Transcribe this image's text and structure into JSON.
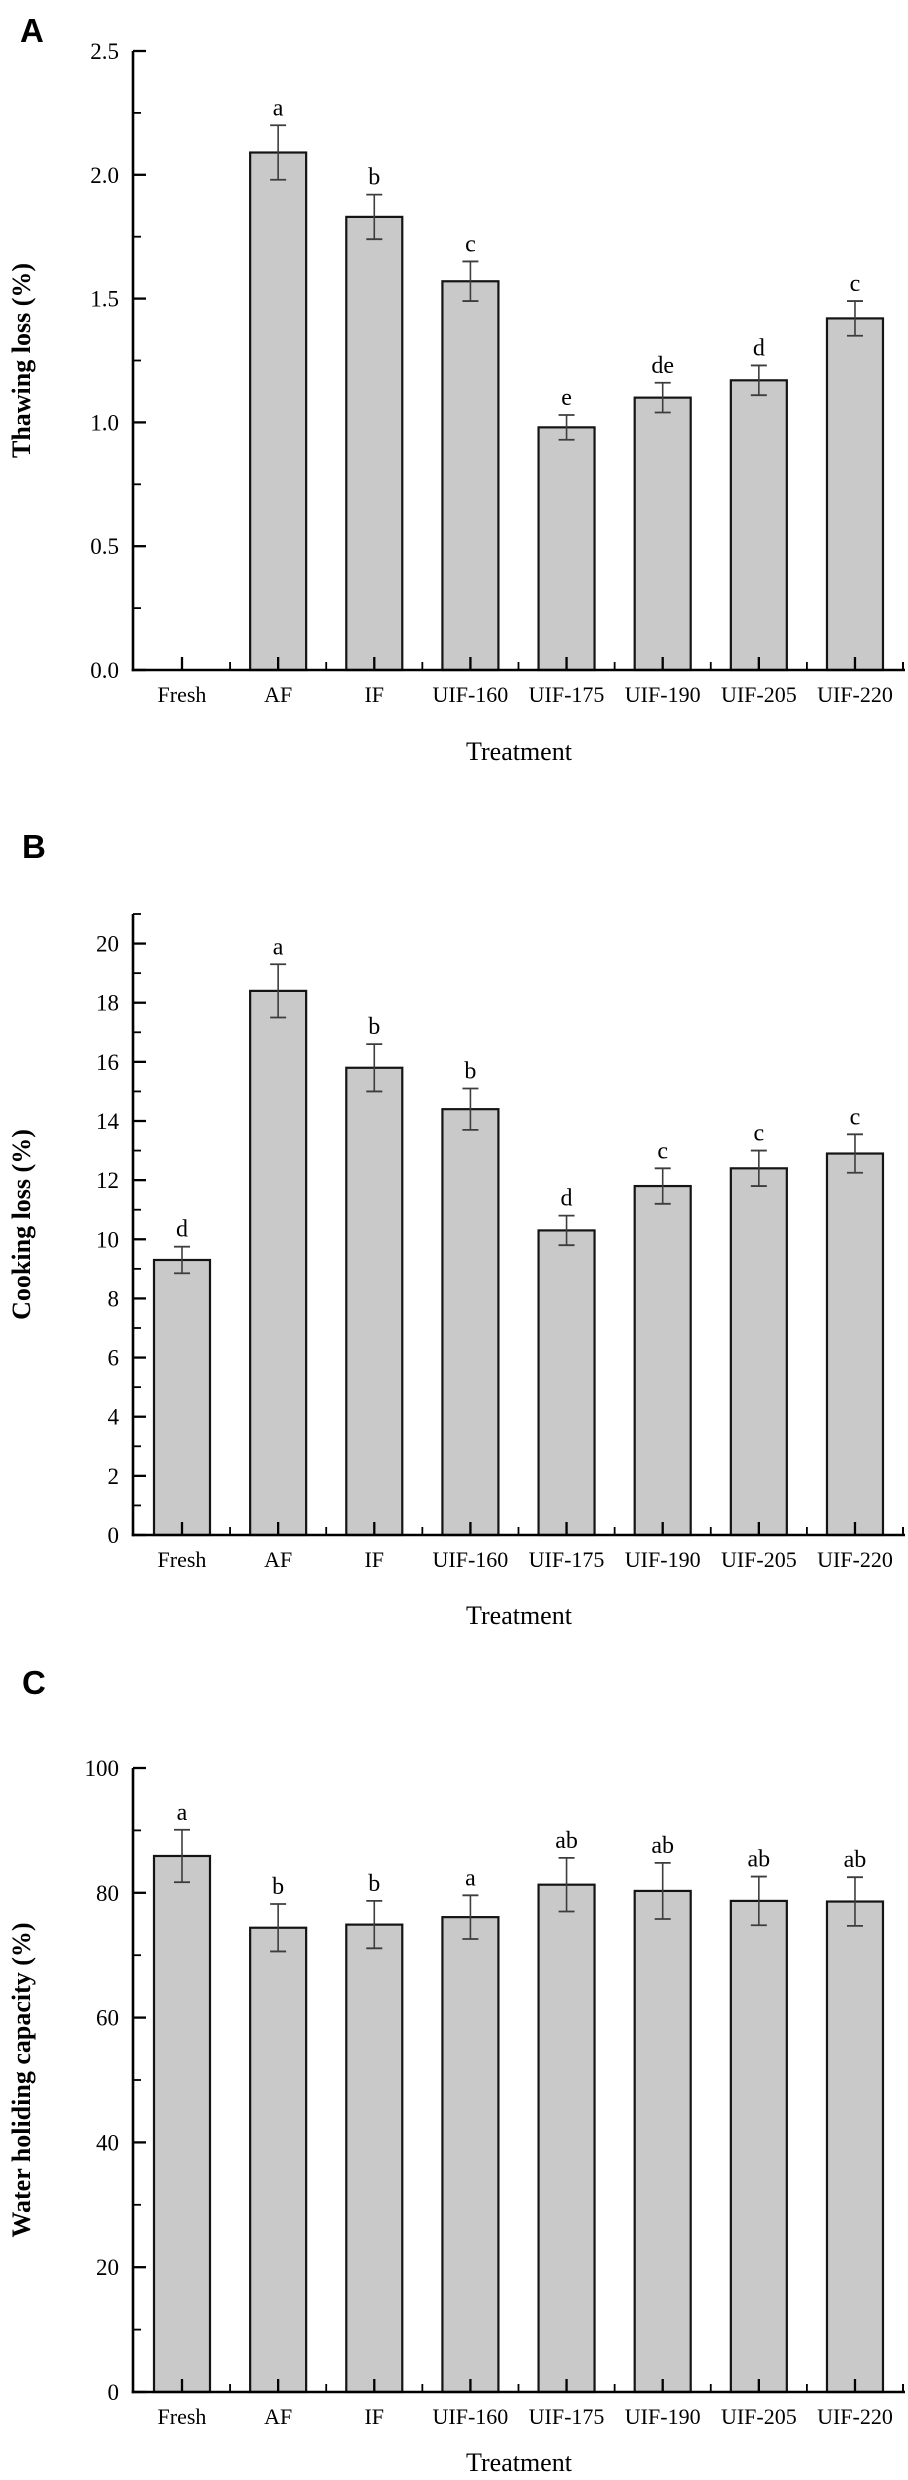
{
  "figure": {
    "panel_labels": [
      "A",
      "B",
      "C"
    ],
    "x_axis_title": "Treatment",
    "bar_fill_color": "#c9c9c9",
    "bar_stroke_color": "#141414",
    "error_bar_color": "#3d3d3d",
    "axis_color": "#000000"
  },
  "chart_data": [
    {
      "type": "bar",
      "panel_label": "A",
      "title": "",
      "xlabel": "Treatment",
      "ylabel": "Thawing loss (%)",
      "categories": [
        "Fresh",
        "AF",
        "IF",
        "UIF-160",
        "UIF-175",
        "UIF-190",
        "UIF-205",
        "UIF-220"
      ],
      "values": [
        0,
        2.09,
        1.83,
        1.57,
        0.98,
        1.1,
        1.17,
        1.42
      ],
      "errors": [
        0,
        0.11,
        0.09,
        0.08,
        0.05,
        0.06,
        0.06,
        0.07
      ],
      "sig_letters": [
        "",
        "a",
        "b",
        "c",
        "e",
        "de",
        "d",
        "c"
      ],
      "ylim": [
        0,
        2.5
      ],
      "yticks": [
        0.0,
        0.5,
        1.0,
        1.5,
        2.0,
        2.5
      ],
      "ytick_labels": [
        "0.0",
        "0.5",
        "1.0",
        "1.5",
        "2.0",
        "2.5"
      ],
      "minor_step": 0.25,
      "grid": false,
      "legend": null
    },
    {
      "type": "bar",
      "panel_label": "B",
      "title": "",
      "xlabel": "Treatment",
      "ylabel": "Cooking loss (%)",
      "categories": [
        "Fresh",
        "AF",
        "IF",
        "UIF-160",
        "UIF-175",
        "UIF-190",
        "UIF-205",
        "UIF-220"
      ],
      "values": [
        9.3,
        18.4,
        15.8,
        14.4,
        10.3,
        11.8,
        12.4,
        12.9
      ],
      "errors": [
        0.45,
        0.9,
        0.8,
        0.7,
        0.5,
        0.6,
        0.6,
        0.65
      ],
      "sig_letters": [
        "d",
        "a",
        "b",
        "b",
        "d",
        "c",
        "c",
        "c"
      ],
      "ylim": [
        0,
        21
      ],
      "yticks": [
        0,
        2,
        4,
        6,
        8,
        10,
        12,
        14,
        16,
        18,
        20
      ],
      "ytick_labels": [
        "0",
        "2",
        "4",
        "6",
        "8",
        "10",
        "12",
        "14",
        "16",
        "18",
        "20"
      ],
      "minor_step": 1,
      "grid": false,
      "legend": null
    },
    {
      "type": "bar",
      "panel_label": "C",
      "title": "",
      "xlabel": "Treatment",
      "ylabel": "Water holiding capacity (%)",
      "categories": [
        "Fresh",
        "AF",
        "IF",
        "UIF-160",
        "UIF-175",
        "UIF-190",
        "UIF-205",
        "UIF-220"
      ],
      "values": [
        85.9,
        74.4,
        74.9,
        76.1,
        81.3,
        80.3,
        78.7,
        78.6
      ],
      "errors": [
        4.2,
        3.8,
        3.8,
        3.5,
        4.3,
        4.5,
        3.9,
        3.9
      ],
      "sig_letters": [
        "a",
        "b",
        "b",
        "a",
        "ab",
        "ab",
        "ab",
        "ab"
      ],
      "ylim": [
        0,
        100
      ],
      "yticks": [
        0,
        20,
        40,
        60,
        80,
        100
      ],
      "ytick_labels": [
        "0",
        "20",
        "40",
        "60",
        "80",
        "100"
      ],
      "minor_step": 10,
      "grid": false,
      "legend": null
    }
  ]
}
